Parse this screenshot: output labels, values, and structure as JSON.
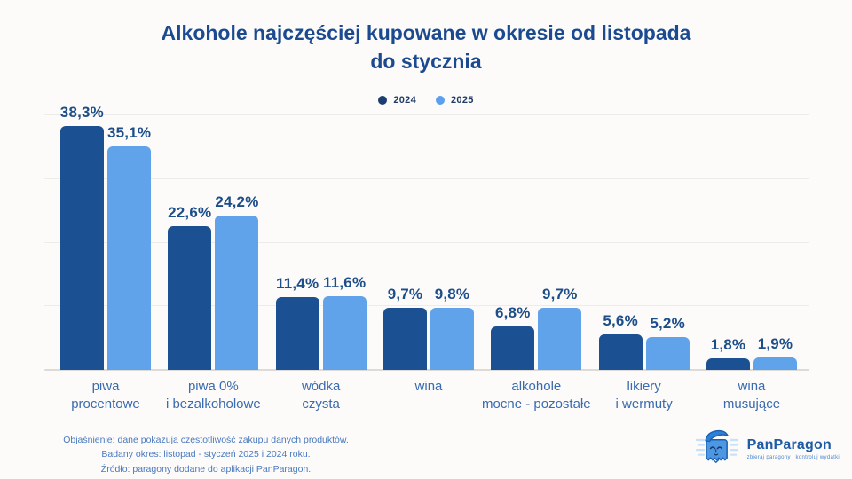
{
  "title": "Alkohole najczęściej kupowane w okresie od listopada do stycznia",
  "chart_data": {
    "type": "bar",
    "title": "Alkohole najczęściej kupowane w okresie od listopada do stycznia",
    "categories": [
      "piwa\nprocentowe",
      "piwa 0%\ni bezalkoholowe",
      "wódka\nczysta",
      "wina",
      "alkohole\nmocne - pozostałe",
      "likiery\ni wermuty",
      "wina\nmusujące"
    ],
    "series": [
      {
        "name": "2024",
        "color": "#1B5092",
        "values": [
          38.3,
          22.6,
          11.4,
          9.7,
          6.8,
          5.6,
          1.8
        ]
      },
      {
        "name": "2025",
        "color": "#61A3EA",
        "values": [
          35.1,
          24.2,
          11.6,
          9.8,
          9.7,
          5.2,
          1.9
        ]
      }
    ],
    "ylim": [
      0,
      40
    ],
    "gridlines": [
      10,
      20,
      30,
      40
    ],
    "value_suffix": "%",
    "decimal_separator": ",",
    "legend_position": "top",
    "xlabel": "",
    "ylabel": ""
  },
  "legend": {
    "items": [
      {
        "label": "2024",
        "color": "#1B3E6F"
      },
      {
        "label": "2025",
        "color": "#5C9FEE"
      }
    ]
  },
  "footer": {
    "lines": [
      "Objaśnienie: dane pokazują częstotliwość zakupu danych produktów.",
      "Badany okres: listopad - styczeń 2025 i 2024 roku.",
      "Źródło: paragony dodane do aplikacji PanParagon."
    ]
  },
  "logo": {
    "name": "PanParagon",
    "tagline": "zbieraj paragony | kontroluj wydatki"
  },
  "colors": {
    "background": "#FCFBF9",
    "title_text": "#1B4A91",
    "value_label": "#1D4E89",
    "category_label": "#3A6BB0",
    "footer_text": "#4879BF",
    "gridline": "#EDECE9"
  }
}
